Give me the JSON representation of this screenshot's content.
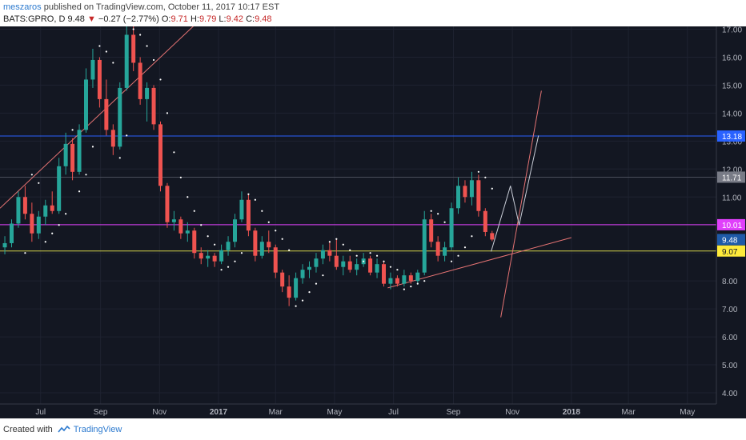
{
  "header": {
    "author": "meszaros",
    "published_text": " published on TradingView.com, October 11, 2017 10:17 EST",
    "symbol": "BATS:GPRO, D",
    "last": "9.48",
    "change_arrow": "▼",
    "change": "−0.27 (−2.77%)",
    "o_label": "O:",
    "o_value": "9.71",
    "h_label": "H:",
    "h_value": "9.79",
    "l_label": "L:",
    "l_value": "9.42",
    "c_label": "C:",
    "c_value": "9.48"
  },
  "footer": {
    "created_with": "Created with",
    "brand": "TradingView"
  },
  "colors": {
    "background": "#131722",
    "up_candle": "#26a69a",
    "down_candle": "#ef5350",
    "grid": "#1e2230",
    "axis_text": "#b2b5be",
    "level_blue": "#2962ff",
    "level_grey": "#787b86",
    "level_magenta": "#e040fb",
    "level_yellow": "#d4d44a",
    "trendline": "#e57373",
    "parabolic_sar": "#ffffff"
  },
  "chart_data": {
    "type": "candlestick",
    "y_ticks": [
      "17.00",
      "16.00",
      "15.00",
      "14.00",
      "13.00",
      "12.00",
      "11.00",
      "10.00",
      "9.00",
      "8.00",
      "7.00",
      "6.00",
      "5.00",
      "4.00"
    ],
    "ylim": [
      3.6,
      17.1
    ],
    "x_ticks": [
      {
        "label": "Jul",
        "date": "2016-07-01"
      },
      {
        "label": "Sep",
        "date": "2016-09-01"
      },
      {
        "label": "Nov",
        "date": "2016-11-01"
      },
      {
        "label": "2017",
        "date": "2017-01-01"
      },
      {
        "label": "Mar",
        "date": "2017-03-01"
      },
      {
        "label": "May",
        "date": "2017-05-01"
      },
      {
        "label": "Jul",
        "date": "2017-07-01"
      },
      {
        "label": "Sep",
        "date": "2017-09-01"
      },
      {
        "label": "Nov",
        "date": "2017-11-01"
      },
      {
        "label": "2018",
        "date": "2018-01-01"
      },
      {
        "label": "Mar",
        "date": "2018-03-01"
      },
      {
        "label": "May",
        "date": "2018-05-01"
      }
    ],
    "price_labels": [
      {
        "value": 13.18,
        "text": "13.18",
        "color": "#2962ff"
      },
      {
        "value": 11.71,
        "text": "11.71",
        "color": "#787b86"
      },
      {
        "value": 10.01,
        "text": "10.01",
        "color": "#e040fb"
      },
      {
        "value": 9.48,
        "text": "9.48",
        "color": "#1e5aa8"
      },
      {
        "value": 9.07,
        "text": "9.07",
        "color": "#ffeb3b"
      }
    ],
    "horizontal_levels": [
      {
        "value": 13.18,
        "color": "#2962ff"
      },
      {
        "value": 11.71,
        "color": "#4a4e5a"
      },
      {
        "value": 10.01,
        "color": "#e040fb"
      },
      {
        "value": 9.07,
        "color": "#d4d44a"
      }
    ],
    "trendlines": [
      {
        "from": [
          "2016-05-20",
          10.6
        ],
        "to": [
          "2016-12-15",
          17.4
        ]
      },
      {
        "from": [
          "2017-06-25",
          7.75
        ],
        "to": [
          "2018-01-01",
          9.55
        ]
      },
      {
        "from": [
          "2017-10-20",
          6.7
        ],
        "to": [
          "2017-12-01",
          14.8
        ]
      }
    ],
    "projection_path": [
      [
        "2017-10-10",
        9.05
      ],
      [
        "2017-10-30",
        11.4
      ],
      [
        "2017-11-08",
        10.0
      ],
      [
        "2017-11-28",
        13.2
      ]
    ],
    "ohlc": [
      {
        "date": "2016-05-25",
        "o": 9.2,
        "h": 9.6,
        "l": 8.95,
        "c": 9.35
      },
      {
        "date": "2016-06-01",
        "o": 9.35,
        "h": 10.2,
        "l": 9.2,
        "c": 10.05
      },
      {
        "date": "2016-06-08",
        "o": 10.05,
        "h": 11.2,
        "l": 9.9,
        "c": 11.0
      },
      {
        "date": "2016-06-15",
        "o": 11.0,
        "h": 11.4,
        "l": 10.2,
        "c": 10.4
      },
      {
        "date": "2016-06-22",
        "o": 10.4,
        "h": 10.8,
        "l": 9.4,
        "c": 9.7
      },
      {
        "date": "2016-06-29",
        "o": 9.7,
        "h": 10.5,
        "l": 9.5,
        "c": 10.3
      },
      {
        "date": "2016-07-06",
        "o": 10.3,
        "h": 10.9,
        "l": 10.0,
        "c": 10.7
      },
      {
        "date": "2016-07-13",
        "o": 10.7,
        "h": 11.2,
        "l": 10.4,
        "c": 10.5
      },
      {
        "date": "2016-07-20",
        "o": 10.5,
        "h": 12.4,
        "l": 10.4,
        "c": 12.1
      },
      {
        "date": "2016-07-27",
        "o": 12.1,
        "h": 13.3,
        "l": 11.8,
        "c": 12.9
      },
      {
        "date": "2016-08-03",
        "o": 12.9,
        "h": 13.1,
        "l": 11.6,
        "c": 11.9
      },
      {
        "date": "2016-08-10",
        "o": 11.9,
        "h": 13.6,
        "l": 11.8,
        "c": 13.4
      },
      {
        "date": "2016-08-17",
        "o": 13.4,
        "h": 15.6,
        "l": 13.3,
        "c": 15.2
      },
      {
        "date": "2016-08-24",
        "o": 15.2,
        "h": 16.3,
        "l": 14.9,
        "c": 15.9
      },
      {
        "date": "2016-08-31",
        "o": 15.9,
        "h": 16.0,
        "l": 14.2,
        "c": 14.5
      },
      {
        "date": "2016-09-07",
        "o": 14.5,
        "h": 15.2,
        "l": 13.2,
        "c": 13.4
      },
      {
        "date": "2016-09-14",
        "o": 13.4,
        "h": 13.6,
        "l": 12.5,
        "c": 12.8
      },
      {
        "date": "2016-09-21",
        "o": 12.8,
        "h": 15.1,
        "l": 12.7,
        "c": 14.9
      },
      {
        "date": "2016-09-28",
        "o": 14.9,
        "h": 17.1,
        "l": 14.8,
        "c": 16.8
      },
      {
        "date": "2016-10-05",
        "o": 16.8,
        "h": 17.1,
        "l": 15.5,
        "c": 15.8
      },
      {
        "date": "2016-10-12",
        "o": 15.8,
        "h": 16.0,
        "l": 14.3,
        "c": 14.5
      },
      {
        "date": "2016-10-19",
        "o": 14.5,
        "h": 15.1,
        "l": 13.7,
        "c": 14.9
      },
      {
        "date": "2016-10-26",
        "o": 14.9,
        "h": 15.0,
        "l": 13.4,
        "c": 13.6
      },
      {
        "date": "2016-11-02",
        "o": 13.6,
        "h": 13.7,
        "l": 11.2,
        "c": 11.4
      },
      {
        "date": "2016-11-09",
        "o": 11.4,
        "h": 11.5,
        "l": 9.9,
        "c": 10.1
      },
      {
        "date": "2016-11-16",
        "o": 10.1,
        "h": 10.5,
        "l": 9.8,
        "c": 10.2
      },
      {
        "date": "2016-11-23",
        "o": 10.2,
        "h": 10.3,
        "l": 9.5,
        "c": 9.7
      },
      {
        "date": "2016-11-30",
        "o": 9.7,
        "h": 10.1,
        "l": 9.4,
        "c": 9.8
      },
      {
        "date": "2016-12-07",
        "o": 9.8,
        "h": 9.9,
        "l": 8.8,
        "c": 9.0
      },
      {
        "date": "2016-12-14",
        "o": 9.0,
        "h": 9.2,
        "l": 8.6,
        "c": 8.8
      },
      {
        "date": "2016-12-21",
        "o": 8.8,
        "h": 9.1,
        "l": 8.5,
        "c": 8.9
      },
      {
        "date": "2016-12-28",
        "o": 8.9,
        "h": 9.0,
        "l": 8.5,
        "c": 8.7
      },
      {
        "date": "2017-01-04",
        "o": 8.7,
        "h": 9.3,
        "l": 8.6,
        "c": 9.1
      },
      {
        "date": "2017-01-11",
        "o": 9.1,
        "h": 9.6,
        "l": 8.9,
        "c": 9.4
      },
      {
        "date": "2017-01-18",
        "o": 9.4,
        "h": 10.4,
        "l": 9.2,
        "c": 10.2
      },
      {
        "date": "2017-01-25",
        "o": 10.2,
        "h": 11.2,
        "l": 10.1,
        "c": 10.9
      },
      {
        "date": "2017-02-01",
        "o": 10.9,
        "h": 11.1,
        "l": 9.6,
        "c": 9.8
      },
      {
        "date": "2017-02-08",
        "o": 9.8,
        "h": 9.9,
        "l": 8.7,
        "c": 8.9
      },
      {
        "date": "2017-02-15",
        "o": 8.9,
        "h": 9.6,
        "l": 8.8,
        "c": 9.4
      },
      {
        "date": "2017-02-22",
        "o": 9.4,
        "h": 9.8,
        "l": 9.0,
        "c": 9.2
      },
      {
        "date": "2017-03-01",
        "o": 9.2,
        "h": 9.3,
        "l": 8.1,
        "c": 8.3
      },
      {
        "date": "2017-03-08",
        "o": 8.3,
        "h": 8.4,
        "l": 7.6,
        "c": 7.8
      },
      {
        "date": "2017-03-15",
        "o": 7.8,
        "h": 8.2,
        "l": 7.1,
        "c": 7.4
      },
      {
        "date": "2017-03-22",
        "o": 7.4,
        "h": 8.3,
        "l": 7.3,
        "c": 8.1
      },
      {
        "date": "2017-03-29",
        "o": 8.1,
        "h": 8.6,
        "l": 7.9,
        "c": 8.4
      },
      {
        "date": "2017-04-05",
        "o": 8.4,
        "h": 8.7,
        "l": 8.1,
        "c": 8.5
      },
      {
        "date": "2017-04-12",
        "o": 8.5,
        "h": 9.0,
        "l": 8.3,
        "c": 8.8
      },
      {
        "date": "2017-04-19",
        "o": 8.8,
        "h": 9.3,
        "l": 8.6,
        "c": 9.1
      },
      {
        "date": "2017-04-26",
        "o": 9.1,
        "h": 9.4,
        "l": 8.7,
        "c": 8.9
      },
      {
        "date": "2017-05-03",
        "o": 8.9,
        "h": 9.5,
        "l": 8.4,
        "c": 8.5
      },
      {
        "date": "2017-05-10",
        "o": 8.5,
        "h": 8.9,
        "l": 8.2,
        "c": 8.7
      },
      {
        "date": "2017-05-17",
        "o": 8.7,
        "h": 8.9,
        "l": 8.3,
        "c": 8.4
      },
      {
        "date": "2017-05-24",
        "o": 8.4,
        "h": 8.8,
        "l": 8.2,
        "c": 8.6
      },
      {
        "date": "2017-05-31",
        "o": 8.6,
        "h": 9.0,
        "l": 8.5,
        "c": 8.8
      },
      {
        "date": "2017-06-07",
        "o": 8.8,
        "h": 8.9,
        "l": 8.2,
        "c": 8.3
      },
      {
        "date": "2017-06-14",
        "o": 8.3,
        "h": 8.8,
        "l": 8.1,
        "c": 8.6
      },
      {
        "date": "2017-06-21",
        "o": 8.6,
        "h": 8.7,
        "l": 7.8,
        "c": 7.9
      },
      {
        "date": "2017-06-28",
        "o": 7.9,
        "h": 8.3,
        "l": 7.7,
        "c": 8.1
      },
      {
        "date": "2017-07-05",
        "o": 8.1,
        "h": 8.2,
        "l": 7.8,
        "c": 7.9
      },
      {
        "date": "2017-07-12",
        "o": 7.9,
        "h": 8.4,
        "l": 7.8,
        "c": 8.2
      },
      {
        "date": "2017-07-19",
        "o": 8.2,
        "h": 8.3,
        "l": 7.9,
        "c": 8.0
      },
      {
        "date": "2017-07-26",
        "o": 8.0,
        "h": 8.4,
        "l": 7.9,
        "c": 8.3
      },
      {
        "date": "2017-08-02",
        "o": 8.3,
        "h": 10.5,
        "l": 8.2,
        "c": 10.2
      },
      {
        "date": "2017-08-09",
        "o": 10.2,
        "h": 10.4,
        "l": 9.2,
        "c": 9.4
      },
      {
        "date": "2017-08-16",
        "o": 9.4,
        "h": 9.6,
        "l": 8.7,
        "c": 8.9
      },
      {
        "date": "2017-08-23",
        "o": 8.9,
        "h": 9.4,
        "l": 8.7,
        "c": 9.2
      },
      {
        "date": "2017-08-30",
        "o": 9.2,
        "h": 10.8,
        "l": 9.1,
        "c": 10.6
      },
      {
        "date": "2017-09-06",
        "o": 10.6,
        "h": 11.7,
        "l": 10.4,
        "c": 11.4
      },
      {
        "date": "2017-09-13",
        "o": 11.4,
        "h": 11.6,
        "l": 10.8,
        "c": 11.0
      },
      {
        "date": "2017-09-20",
        "o": 11.0,
        "h": 11.9,
        "l": 10.7,
        "c": 11.6
      },
      {
        "date": "2017-09-27",
        "o": 11.6,
        "h": 11.8,
        "l": 10.3,
        "c": 10.5
      },
      {
        "date": "2017-10-04",
        "o": 10.5,
        "h": 10.6,
        "l": 9.6,
        "c": 9.75
      },
      {
        "date": "2017-10-11",
        "o": 9.71,
        "h": 9.79,
        "l": 9.42,
        "c": 9.48
      }
    ],
    "parabolic_sar": [
      [
        "2016-06-15",
        9.0
      ],
      [
        "2016-06-22",
        11.8
      ],
      [
        "2016-06-29",
        11.5
      ],
      [
        "2016-07-06",
        9.4
      ],
      [
        "2016-07-13",
        9.7
      ],
      [
        "2016-07-20",
        10.0
      ],
      [
        "2016-07-27",
        10.4
      ],
      [
        "2016-08-03",
        13.4
      ],
      [
        "2016-08-10",
        11.2
      ],
      [
        "2016-08-17",
        11.8
      ],
      [
        "2016-08-24",
        12.8
      ],
      [
        "2016-08-31",
        16.4
      ],
      [
        "2016-09-07",
        16.2
      ],
      [
        "2016-09-14",
        15.8
      ],
      [
        "2016-09-21",
        12.4
      ],
      [
        "2016-09-28",
        13.2
      ],
      [
        "2016-10-05",
        17.0
      ],
      [
        "2016-10-12",
        16.8
      ],
      [
        "2016-10-19",
        16.4
      ],
      [
        "2016-10-26",
        15.9
      ],
      [
        "2016-11-02",
        15.2
      ],
      [
        "2016-11-09",
        14.0
      ],
      [
        "2016-11-16",
        12.6
      ],
      [
        "2016-11-23",
        11.7
      ],
      [
        "2016-11-30",
        11.0
      ],
      [
        "2016-12-07",
        10.5
      ],
      [
        "2016-12-14",
        10.0
      ],
      [
        "2016-12-21",
        9.6
      ],
      [
        "2016-12-28",
        9.3
      ],
      [
        "2017-01-04",
        8.4
      ],
      [
        "2017-01-11",
        8.5
      ],
      [
        "2017-01-18",
        8.7
      ],
      [
        "2017-01-25",
        9.0
      ],
      [
        "2017-02-01",
        11.1
      ],
      [
        "2017-02-08",
        10.9
      ],
      [
        "2017-02-15",
        10.5
      ],
      [
        "2017-02-22",
        10.1
      ],
      [
        "2017-03-01",
        9.8
      ],
      [
        "2017-03-08",
        9.5
      ],
      [
        "2017-03-15",
        9.1
      ],
      [
        "2017-03-22",
        7.1
      ],
      [
        "2017-03-29",
        7.3
      ],
      [
        "2017-04-05",
        7.6
      ],
      [
        "2017-04-12",
        7.9
      ],
      [
        "2017-04-19",
        8.2
      ],
      [
        "2017-04-26",
        9.4
      ],
      [
        "2017-05-03",
        9.5
      ],
      [
        "2017-05-10",
        9.3
      ],
      [
        "2017-05-17",
        9.1
      ],
      [
        "2017-05-24",
        8.9
      ],
      [
        "2017-05-31",
        8.7
      ],
      [
        "2017-06-07",
        9.0
      ],
      [
        "2017-06-14",
        8.9
      ],
      [
        "2017-06-21",
        8.7
      ],
      [
        "2017-06-28",
        8.5
      ],
      [
        "2017-07-05",
        8.4
      ],
      [
        "2017-07-12",
        7.7
      ],
      [
        "2017-07-19",
        7.8
      ],
      [
        "2017-07-26",
        7.9
      ],
      [
        "2017-08-02",
        8.0
      ],
      [
        "2017-08-09",
        10.5
      ],
      [
        "2017-08-16",
        10.4
      ],
      [
        "2017-08-23",
        10.1
      ],
      [
        "2017-08-30",
        8.7
      ],
      [
        "2017-09-06",
        8.9
      ],
      [
        "2017-09-13",
        9.2
      ],
      [
        "2017-09-20",
        9.6
      ],
      [
        "2017-09-27",
        11.9
      ],
      [
        "2017-10-04",
        11.7
      ],
      [
        "2017-10-11",
        11.3
      ]
    ]
  }
}
